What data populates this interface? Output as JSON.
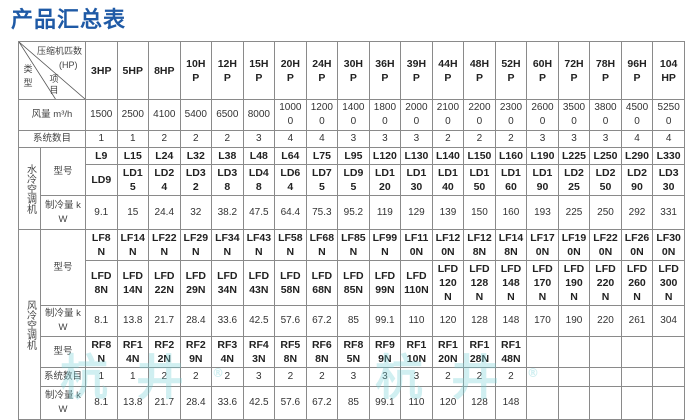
{
  "title": "产品汇总表",
  "corner": {
    "top": "压缩机匹数",
    "unit": "(HP)",
    "item": "项目",
    "type": "类型"
  },
  "columns": [
    "3HP",
    "5HP",
    "8HP",
    "10HP",
    "12HP",
    "15HP",
    "20HP",
    "24HP",
    "30HP",
    "36HP",
    "39HP",
    "44HP",
    "48HP",
    "52HP",
    "60HP",
    "72HP",
    "78HP",
    "96HP",
    "104HP"
  ],
  "airflow": {
    "label": "风量 m³/h",
    "values": [
      "1500",
      "2500",
      "4100",
      "5400",
      "6500",
      "8000",
      "10000",
      "12000",
      "14000",
      "18000",
      "20000",
      "21000",
      "22000",
      "23000",
      "26000",
      "35000",
      "38000",
      "45000",
      "52500"
    ]
  },
  "systems": {
    "label": "系统数目",
    "values": [
      "1",
      "1",
      "2",
      "2",
      "2",
      "3",
      "4",
      "4",
      "3",
      "3",
      "3",
      "2",
      "2",
      "2",
      "3",
      "3",
      "3",
      "4",
      "4"
    ]
  },
  "water": {
    "label": "水冷空调机",
    "model_label": "型号",
    "models_l": [
      "L9",
      "L15",
      "L24",
      "L32",
      "L38",
      "L48",
      "L64",
      "L75",
      "L95",
      "L120",
      "L130",
      "L140",
      "L150",
      "L160",
      "L190",
      "L225",
      "L250",
      "L290",
      "L330"
    ],
    "models_ld": [
      "LD9",
      "LD15",
      "LD24",
      "LD32",
      "LD38",
      "LD48",
      "LD64",
      "LD75",
      "LD95",
      "LD120",
      "LD130",
      "LD140",
      "LD150",
      "LD160",
      "LD190",
      "LD225",
      "LD250",
      "LD290",
      "LD330"
    ],
    "cooling_label": "制冷量 kW",
    "cooling": [
      "9.1",
      "15",
      "24.4",
      "32",
      "38.2",
      "47.5",
      "64.4",
      "75.3",
      "95.2",
      "119",
      "129",
      "139",
      "150",
      "160",
      "193",
      "225",
      "250",
      "292",
      "331"
    ]
  },
  "air": {
    "label": "风冷空调机",
    "model_label": "型号",
    "models_lf": [
      "LF8N",
      "LF14N",
      "LF22N",
      "LF29N",
      "LF34N",
      "LF43N",
      "LF58N",
      "LF68N",
      "LF85N",
      "LF99N",
      "LF110N",
      "LF120N",
      "LF128N",
      "LF148N",
      "LF170N",
      "LF190N",
      "LF220N",
      "LF260N",
      "LF300N"
    ],
    "models_lfd": [
      "LFD8N",
      "LFD14N",
      "LFD22N",
      "LFD29N",
      "LFD34N",
      "LFD43N",
      "LFD58N",
      "LFD68N",
      "LFD85N",
      "LFD99N",
      "LFD110N",
      "LFD120N",
      "LFD128N",
      "LFD148N",
      "LFD170N",
      "LFD190N",
      "LFD220N",
      "LFD260N",
      "LFD300N"
    ],
    "cooling_label": "制冷量 kW",
    "cooling": [
      "8.1",
      "13.8",
      "21.7",
      "28.4",
      "33.6",
      "42.5",
      "57.6",
      "67.2",
      "85",
      "99.1",
      "110",
      "120",
      "128",
      "148",
      "170",
      "190",
      "220",
      "261",
      "304"
    ],
    "rf_model_label": "型号",
    "models_rf": [
      "RF8N",
      "RF14N",
      "RF22N",
      "RF29N",
      "RF34N",
      "RF43N",
      "RF58N",
      "RF68N",
      "RF85N",
      "RF99N",
      "RF110N",
      "RF120N",
      "RF128N",
      "RF148N",
      "",
      "",
      "",
      "",
      ""
    ],
    "rf_systems_label": "系统数目",
    "rf_systems": [
      "1",
      "1",
      "2",
      "2",
      "2",
      "3",
      "2",
      "2",
      "3",
      "3",
      "3",
      "2",
      "2",
      "2",
      "",
      "",
      "",
      "",
      ""
    ],
    "rf_cooling_label": "制冷量 kW",
    "rf_cooling": [
      "8.1",
      "13.8",
      "21.7",
      "28.4",
      "33.6",
      "42.5",
      "57.6",
      "67.2",
      "85",
      "99.1",
      "110",
      "120",
      "128",
      "148",
      "",
      "",
      "",
      "",
      ""
    ]
  },
  "watermark": "杭井",
  "watermark_mark": "®",
  "colors": {
    "title": "#1f5aa6",
    "border": "#8a8a8a",
    "watermark": "#78d2d7"
  }
}
